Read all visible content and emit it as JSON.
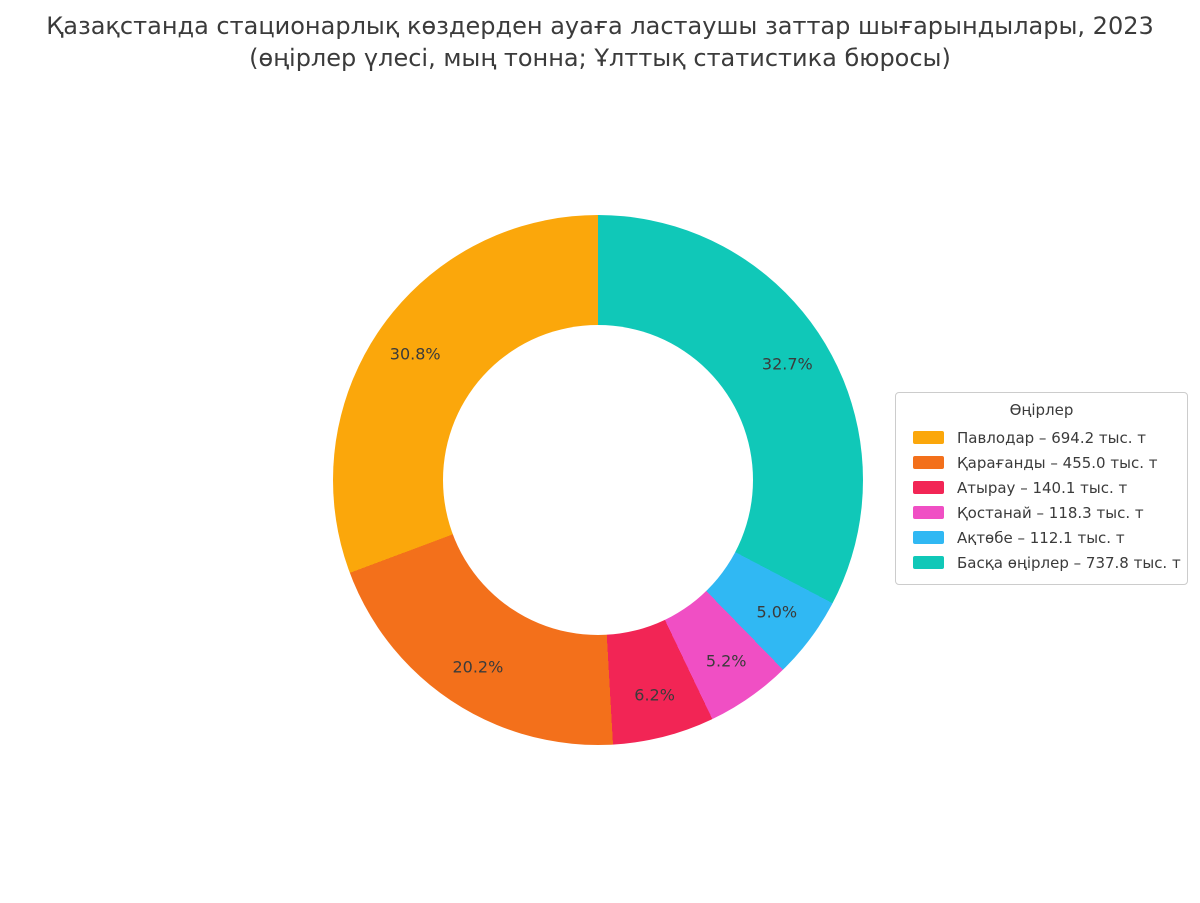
{
  "title": {
    "line1": "Қазақстанда стационарлық көздерден ауаға ластаушы заттар шығарындылары, 2023",
    "line2": "(өңірлер үлесі, мың тонна; Ұлттық статистика бюросы)"
  },
  "legend": {
    "title": "Өңірлер"
  },
  "colors": {
    "background": "#ffffff",
    "text": "#3b3b3b",
    "legend_border": "#cccccc"
  },
  "chart_data": {
    "type": "pie",
    "subtype": "donut",
    "start_angle_deg": 90,
    "direction": "counterclockwise",
    "units": "тыс. т",
    "legend_position": "right",
    "slices": [
      {
        "name": "Павлодар",
        "value": 694.2,
        "pct": 30.8,
        "pct_label": "30.8%",
        "legend_label": "Павлодар – 694.2 тыс. т",
        "color": "#FBA70B"
      },
      {
        "name": "Қарағанды",
        "value": 455.0,
        "pct": 20.2,
        "pct_label": "20.2%",
        "legend_label": "Қарағанды – 455.0 тыс. т",
        "color": "#F3701B"
      },
      {
        "name": "Атырау",
        "value": 140.1,
        "pct": 6.2,
        "pct_label": "6.2%",
        "legend_label": "Атырау – 140.1 тыс. т",
        "color": "#F22555"
      },
      {
        "name": "Қостанай",
        "value": 118.3,
        "pct": 5.2,
        "pct_label": "5.2%",
        "legend_label": "Қостанай – 118.3 тыс. т",
        "color": "#F04FC4"
      },
      {
        "name": "Ақтөбе",
        "value": 112.1,
        "pct": 5.0,
        "pct_label": "5.0%",
        "legend_label": "Ақтөбе – 112.1 тыс. т",
        "color": "#30B8F3"
      },
      {
        "name": "Басқа өңірлер",
        "value": 737.8,
        "pct": 32.7,
        "pct_label": "32.7%",
        "legend_label": "Басқа өңірлер – 737.8 тыс. т",
        "color": "#10C8B8"
      }
    ]
  }
}
